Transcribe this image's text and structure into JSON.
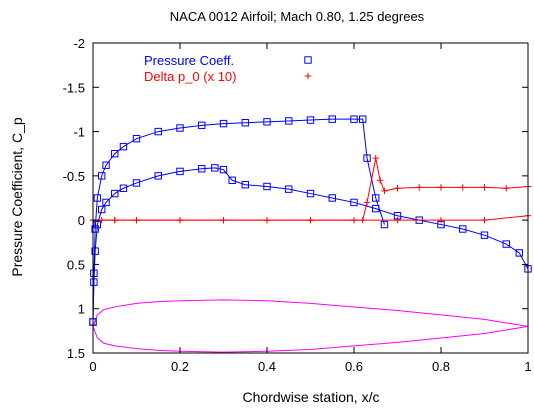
{
  "chart_data": {
    "type": "line",
    "title": "NACA 0012 Airfoil; Mach 0.80, 1.25 degrees",
    "xlabel": "Chordwise station, x/c",
    "ylabel": "Pressure Coefficient, C_p",
    "xlim": [
      0,
      1
    ],
    "ylim": [
      -2,
      1.5
    ],
    "y_reversed": true,
    "x_ticks": [
      0,
      0.2,
      0.4,
      0.6,
      0.8,
      1
    ],
    "x_tick_labels": [
      "0",
      "0.2",
      "0.4",
      "0.6",
      "0.8",
      "1"
    ],
    "y_ticks": [
      -2,
      -1.5,
      -1,
      -0.5,
      0,
      0.5,
      1,
      1.5
    ],
    "y_tick_labels": [
      "-2",
      "-1.5",
      "-1",
      "-0.5",
      "0",
      "0.5",
      "1",
      "1.5"
    ],
    "grid": false,
    "legend_position": "top-left",
    "series": [
      {
        "name": "Pressure  Coeff.",
        "marker": "square",
        "color": "#0000ff",
        "surfaces": [
          {
            "surface": "upper",
            "x": [
              0.0,
              0.002,
              0.005,
              0.01,
              0.02,
              0.03,
              0.05,
              0.07,
              0.1,
              0.15,
              0.2,
              0.25,
              0.3,
              0.35,
              0.4,
              0.45,
              0.5,
              0.55,
              0.6,
              0.62,
              0.63,
              0.65,
              0.67
            ],
            "y": [
              1.15,
              0.6,
              0.1,
              -0.25,
              -0.5,
              -0.62,
              -0.75,
              -0.83,
              -0.92,
              -1.0,
              -1.04,
              -1.07,
              -1.09,
              -1.1,
              -1.11,
              -1.12,
              -1.13,
              -1.14,
              -1.14,
              -1.14,
              -0.7,
              -0.25,
              0.05
            ]
          },
          {
            "surface": "lower",
            "x": [
              0.0,
              0.002,
              0.005,
              0.01,
              0.02,
              0.03,
              0.05,
              0.07,
              0.1,
              0.15,
              0.2,
              0.25,
              0.28,
              0.3,
              0.32,
              0.35,
              0.4,
              0.45,
              0.5,
              0.55,
              0.6,
              0.65,
              0.7,
              0.75,
              0.8,
              0.85,
              0.9,
              0.95,
              0.98,
              1.0
            ],
            "y": [
              1.15,
              0.7,
              0.35,
              0.05,
              -0.12,
              -0.2,
              -0.3,
              -0.36,
              -0.42,
              -0.5,
              -0.55,
              -0.58,
              -0.59,
              -0.57,
              -0.45,
              -0.4,
              -0.38,
              -0.35,
              -0.3,
              -0.25,
              -0.2,
              -0.13,
              -0.05,
              0.0,
              0.05,
              0.1,
              0.17,
              0.27,
              0.37,
              0.55
            ]
          }
        ]
      },
      {
        "name": "Delta p_0 (x 10)",
        "marker": "plus",
        "color": "#ff0000",
        "surfaces": [
          {
            "surface": "upper",
            "x": [
              0.0,
              0.02,
              0.05,
              0.1,
              0.2,
              0.3,
              0.4,
              0.5,
              0.6,
              0.62,
              0.63,
              0.65,
              0.66,
              0.67,
              0.7,
              0.75,
              0.8,
              0.85,
              0.9,
              0.95,
              1.0
            ],
            "y": [
              0.0,
              0.0,
              0.0,
              0.0,
              0.0,
              0.0,
              0.0,
              0.0,
              0.0,
              0.0,
              -0.2,
              -0.7,
              -0.45,
              -0.33,
              -0.36,
              -0.37,
              -0.37,
              -0.37,
              -0.37,
              -0.36,
              -0.38
            ]
          },
          {
            "surface": "lower",
            "x": [
              0.0,
              0.05,
              0.1,
              0.2,
              0.3,
              0.4,
              0.5,
              0.6,
              0.7,
              0.8,
              0.9,
              1.0
            ],
            "y": [
              0.0,
              0.0,
              0.0,
              0.0,
              0.0,
              0.0,
              0.0,
              0.0,
              0.0,
              0.0,
              0.0,
              -0.05
            ]
          }
        ]
      }
    ],
    "annotations": [
      {
        "type": "airfoil_outline",
        "color": "#ff00ff",
        "surfaces": [
          {
            "surface": "upper",
            "x": [
              0.0,
              0.01,
              0.025,
              0.05,
              0.1,
              0.15,
              0.2,
              0.3,
              0.4,
              0.5,
              0.6,
              0.7,
              0.8,
              0.9,
              1.0
            ],
            "y": [
              1.2,
              1.07,
              1.01,
              0.98,
              0.94,
              0.92,
              0.91,
              0.9,
              0.91,
              0.94,
              0.98,
              1.02,
              1.07,
              1.12,
              1.2
            ]
          },
          {
            "surface": "lower",
            "x": [
              0.0,
              0.01,
              0.025,
              0.05,
              0.1,
              0.15,
              0.2,
              0.3,
              0.4,
              0.5,
              0.6,
              0.7,
              0.8,
              0.9,
              1.0
            ],
            "y": [
              1.2,
              1.33,
              1.39,
              1.42,
              1.45,
              1.47,
              1.48,
              1.49,
              1.48,
              1.46,
              1.42,
              1.38,
              1.33,
              1.28,
              1.2
            ]
          }
        ]
      }
    ]
  }
}
